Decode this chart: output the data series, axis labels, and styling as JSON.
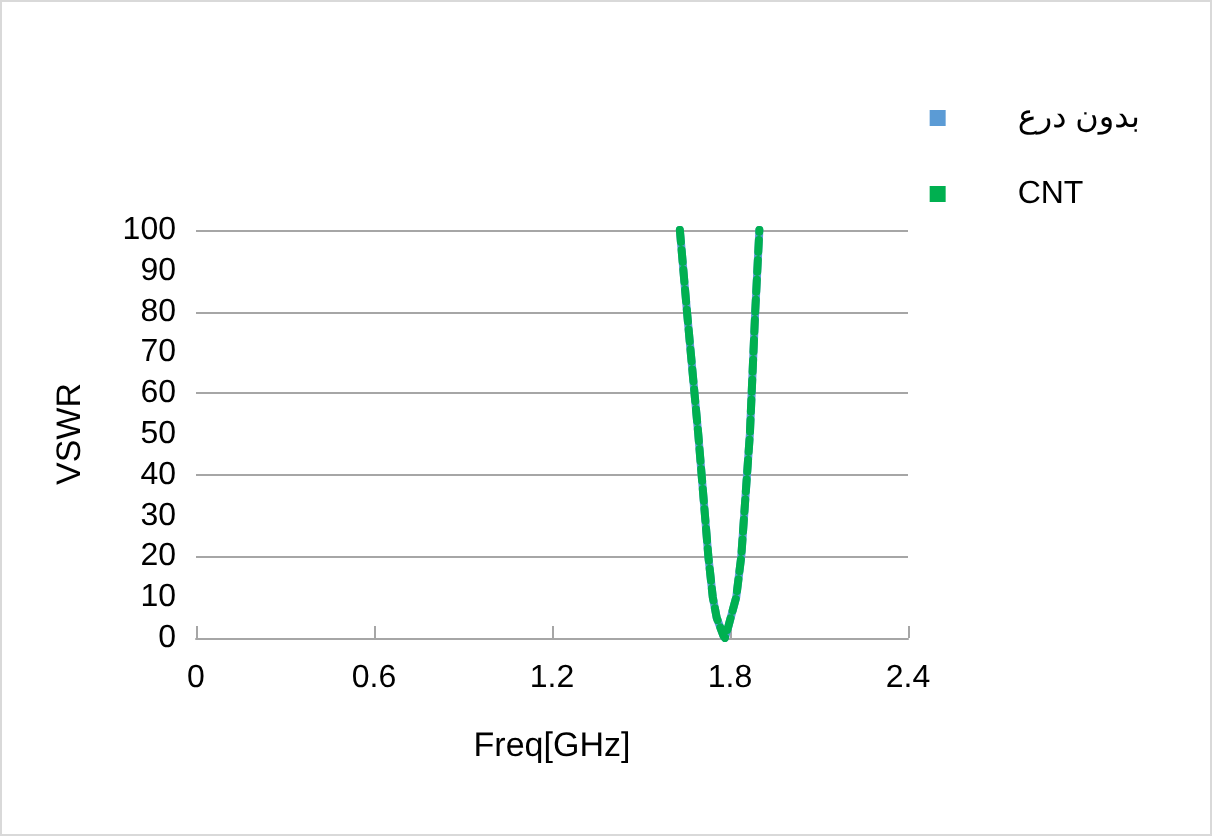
{
  "chart_data": {
    "type": "line",
    "xlabel": "Freq[GHz]",
    "ylabel": "VSWR",
    "xlim": [
      0,
      2.4
    ],
    "xticks": [
      0,
      0.6,
      1.2,
      1.8,
      2.4
    ],
    "ylim": [
      0,
      100
    ],
    "yticks": [
      0,
      10,
      20,
      30,
      40,
      50,
      60,
      70,
      80,
      90,
      100
    ],
    "grid": "y",
    "legend": "top right",
    "marker": "none",
    "series": [
      {
        "name": "بدون درع",
        "color": "#5b9bd5",
        "line_style": "solid",
        "x": [
          1.631,
          1.655,
          1.693,
          1.727,
          1.742,
          1.755,
          1.778,
          1.783,
          1.795,
          1.821,
          1.838,
          1.867,
          1.885,
          1.899
        ],
        "values": [
          100,
          80,
          50,
          20,
          10,
          5,
          0.5,
          0,
          3,
          10,
          20,
          50,
          80,
          100
        ]
      },
      {
        "name": "CNT",
        "color": "#00b050",
        "line_style": "dashed",
        "x": [
          1.631,
          1.655,
          1.693,
          1.727,
          1.742,
          1.755,
          1.778,
          1.783,
          1.795,
          1.821,
          1.838,
          1.867,
          1.885,
          1.899
        ],
        "values": [
          100,
          80,
          50,
          20,
          10,
          5,
          0.5,
          0,
          3,
          10,
          20,
          50,
          80,
          100
        ]
      }
    ]
  }
}
